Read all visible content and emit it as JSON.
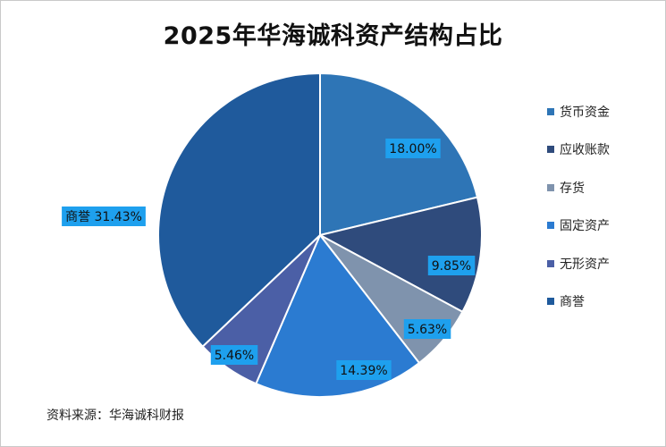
{
  "title": "2025年华海诚科资产结构占比",
  "source": "资料来源：华海诚科财报",
  "chart_data": {
    "type": "pie",
    "title": "2025年华海诚科资产结构占比",
    "categories": [
      "货币资金",
      "应收账款",
      "存货",
      "固定资产",
      "无形资产",
      "商誉"
    ],
    "values": [
      18.0,
      9.85,
      5.63,
      14.39,
      5.46,
      31.43
    ],
    "labels": [
      "18.00%",
      "9.85%",
      "5.63%",
      "14.39%",
      "5.46%",
      "商誉 31.43%"
    ],
    "colors": [
      "#2e75b6",
      "#2f4b7c",
      "#7f93ad",
      "#2b7bd1",
      "#4b5fa6",
      "#1f5a9c"
    ],
    "label_color": "#1ea0ee",
    "start_angle_deg": 0,
    "direction": "clockwise",
    "legend": "right"
  }
}
